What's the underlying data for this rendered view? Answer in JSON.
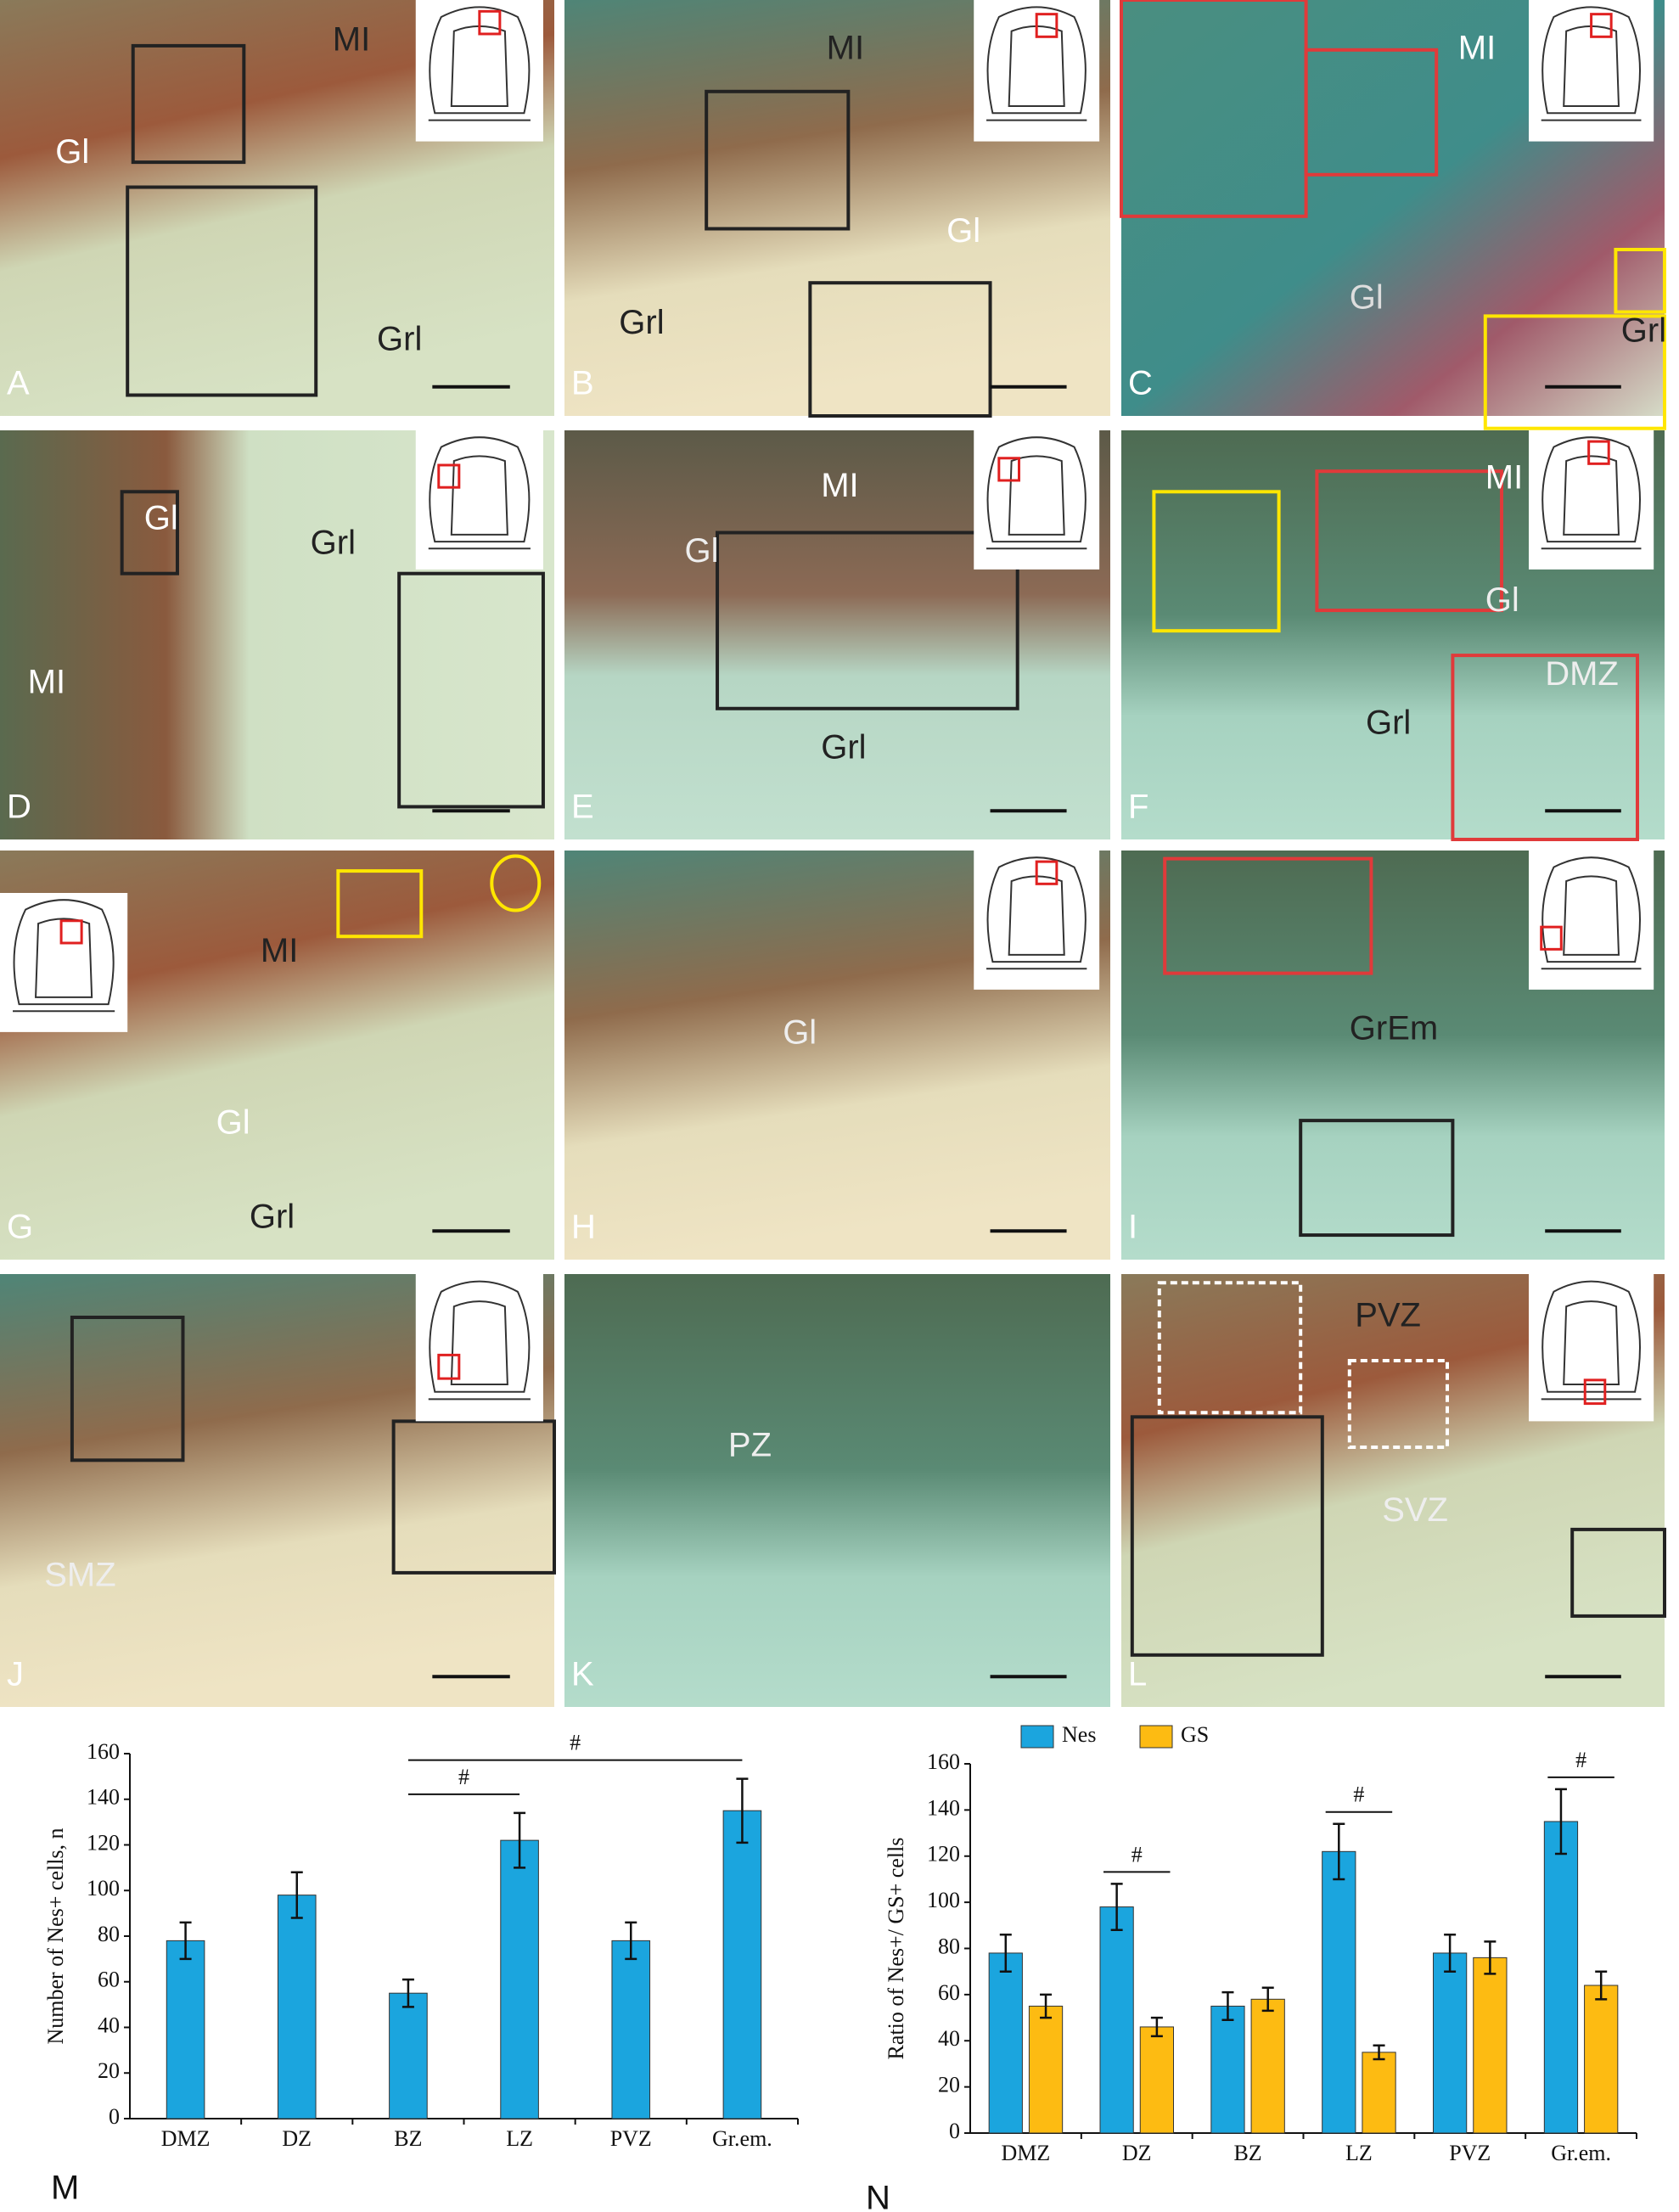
{
  "panels": [
    {
      "letter": "A",
      "labels": [
        "MI",
        "Gl",
        "Grl"
      ]
    },
    {
      "letter": "B",
      "labels": [
        "MI",
        "Gl",
        "Grl"
      ]
    },
    {
      "letter": "C",
      "labels": [
        "MI",
        "Gl",
        "Grl"
      ]
    },
    {
      "letter": "D",
      "labels": [
        "Gl",
        "MI",
        "Grl"
      ]
    },
    {
      "letter": "E",
      "labels": [
        "MI",
        "Gl",
        "Grl"
      ]
    },
    {
      "letter": "F",
      "labels": [
        "MI",
        "Gl",
        "DMZ",
        "Grl"
      ]
    },
    {
      "letter": "G",
      "labels": [
        "MI",
        "Gl",
        "Grl"
      ]
    },
    {
      "letter": "H",
      "labels": [
        "Gl"
      ]
    },
    {
      "letter": "I",
      "labels": [
        "GrEm"
      ]
    },
    {
      "letter": "J",
      "labels": [
        "SMZ"
      ]
    },
    {
      "letter": "K",
      "labels": [
        "PZ"
      ]
    },
    {
      "letter": "L",
      "labels": [
        "PVZ",
        "SVZ"
      ]
    }
  ],
  "chart_data": [
    {
      "type": "bar",
      "panel": "M",
      "y_label": "Number of Nes+ cells, n",
      "categories": [
        "DMZ",
        "DZ",
        "BZ",
        "LZ",
        "PVZ",
        "Gr.em."
      ],
      "values": [
        78,
        98,
        55,
        122,
        78,
        135
      ],
      "errors": [
        8,
        10,
        6,
        12,
        8,
        14
      ],
      "color": "#1ba5de",
      "ylim": [
        0,
        160
      ],
      "yticks": [
        0,
        20,
        40,
        60,
        80,
        100,
        120,
        140,
        160
      ],
      "comparisons": [
        {
          "label": "#",
          "categories": [
            "BZ",
            "LZ"
          ]
        },
        {
          "label": "#",
          "categories": [
            "BZ",
            "Gr.em."
          ]
        }
      ]
    },
    {
      "type": "grouped_bar",
      "panel": "N",
      "y_label": "Ratio of  Nes+/ GS+ cells",
      "categories": [
        "DMZ",
        "DZ",
        "BZ",
        "LZ",
        "PVZ",
        "Gr.em."
      ],
      "series": [
        {
          "name": "Nes",
          "color": "#1ba5de",
          "values": [
            78,
            98,
            55,
            122,
            78,
            135
          ],
          "errors": [
            8,
            10,
            6,
            12,
            8,
            14
          ]
        },
        {
          "name": "GS",
          "color": "#fdbb12",
          "values": [
            55,
            46,
            58,
            35,
            76,
            64
          ],
          "errors": [
            5,
            4,
            5,
            3,
            7,
            6
          ]
        }
      ],
      "ylim": [
        0,
        160
      ],
      "yticks": [
        0,
        20,
        40,
        60,
        80,
        100,
        120,
        140,
        160
      ],
      "legend": "top",
      "comparisons": [
        {
          "label": "#",
          "categories": [
            "DZ"
          ]
        },
        {
          "label": "#",
          "categories": [
            "LZ"
          ]
        },
        {
          "label": "#",
          "categories": [
            "Gr.em."
          ]
        }
      ]
    }
  ]
}
